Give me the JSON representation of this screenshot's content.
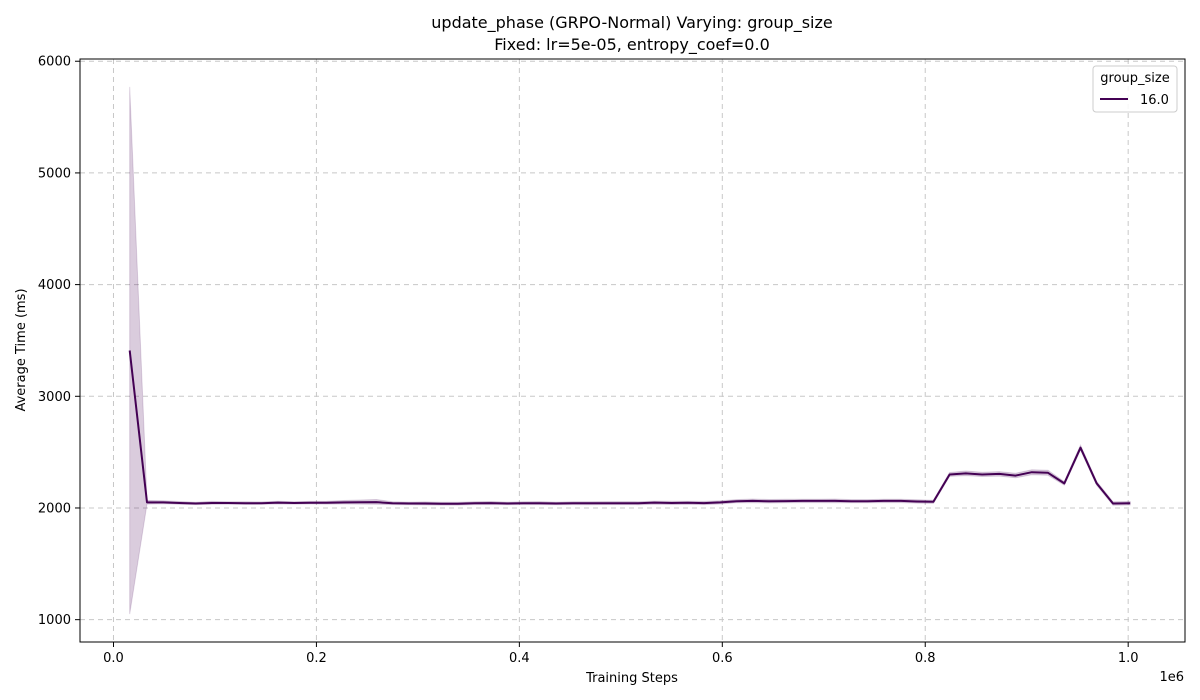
{
  "chart_data": {
    "type": "line",
    "title_line1": "update_phase (GRPO-Normal) Varying: group_size",
    "title_line2": "Fixed: lr=5e-05, entropy_coef=0.0",
    "xlabel": "Training Steps",
    "ylabel": "Average Time (ms)",
    "x_multiplier_label": "1e6",
    "xlim": [
      -0.033,
      1.056
    ],
    "ylim": [
      800,
      6020
    ],
    "xticks": [
      0.0,
      0.2,
      0.4,
      0.6,
      0.8,
      1.0
    ],
    "xtick_labels": [
      "0.0",
      "0.2",
      "0.4",
      "0.6",
      "0.8",
      "1.0"
    ],
    "yticks": [
      1000,
      2000,
      3000,
      4000,
      5000,
      6000
    ],
    "ytick_labels": [
      "1000",
      "2000",
      "3000",
      "4000",
      "5000",
      "6000"
    ],
    "grid": true,
    "legend": {
      "title": "group_size",
      "placement": "top-right"
    },
    "series": [
      {
        "name": "16.0",
        "color": "#440154",
        "band_color": "#440154",
        "x": [
          0.016,
          0.033,
          0.049,
          0.065,
          0.081,
          0.097,
          0.113,
          0.13,
          0.146,
          0.162,
          0.178,
          0.194,
          0.21,
          0.227,
          0.243,
          0.259,
          0.275,
          0.291,
          0.307,
          0.323,
          0.339,
          0.356,
          0.372,
          0.388,
          0.404,
          0.42,
          0.436,
          0.453,
          0.469,
          0.485,
          0.501,
          0.517,
          0.533,
          0.55,
          0.566,
          0.582,
          0.598,
          0.614,
          0.63,
          0.646,
          0.663,
          0.679,
          0.695,
          0.711,
          0.727,
          0.743,
          0.759,
          0.776,
          0.792,
          0.808,
          0.824,
          0.84,
          0.856,
          0.873,
          0.889,
          0.905,
          0.921,
          0.937,
          0.953,
          0.969,
          0.985,
          1.002
        ],
        "y": [
          3410,
          2050,
          2050,
          2045,
          2040,
          2045,
          2045,
          2043,
          2043,
          2048,
          2045,
          2047,
          2047,
          2050,
          2052,
          2053,
          2042,
          2040,
          2040,
          2038,
          2038,
          2042,
          2044,
          2040,
          2042,
          2043,
          2040,
          2042,
          2042,
          2043,
          2043,
          2042,
          2048,
          2045,
          2046,
          2044,
          2050,
          2060,
          2063,
          2060,
          2062,
          2063,
          2063,
          2063,
          2060,
          2060,
          2063,
          2063,
          2058,
          2055,
          2300,
          2310,
          2300,
          2305,
          2290,
          2320,
          2315,
          2220,
          2540,
          2220,
          2040,
          2042
        ],
        "y_lower": [
          1050,
          2035,
          2038,
          2033,
          2030,
          2033,
          2035,
          2032,
          2033,
          2036,
          2035,
          2036,
          2035,
          2036,
          2035,
          2033,
          2030,
          2028,
          2027,
          2026,
          2026,
          2030,
          2031,
          2028,
          2030,
          2030,
          2028,
          2030,
          2029,
          2030,
          2030,
          2029,
          2034,
          2031,
          2032,
          2030,
          2036,
          2046,
          2047,
          2045,
          2047,
          2048,
          2048,
          2047,
          2046,
          2046,
          2048,
          2048,
          2044,
          2041,
          2283,
          2290,
          2282,
          2285,
          2270,
          2298,
          2293,
          2205,
          2518,
          2203,
          2025,
          2027
        ],
        "y_upper": [
          5770,
          2068,
          2064,
          2058,
          2052,
          2059,
          2056,
          2055,
          2054,
          2061,
          2056,
          2059,
          2060,
          2067,
          2071,
          2076,
          2055,
          2053,
          2054,
          2051,
          2051,
          2055,
          2058,
          2053,
          2055,
          2057,
          2053,
          2055,
          2056,
          2057,
          2057,
          2056,
          2062,
          2060,
          2061,
          2059,
          2065,
          2075,
          2080,
          2076,
          2078,
          2079,
          2079,
          2080,
          2075,
          2075,
          2079,
          2079,
          2073,
          2070,
          2318,
          2331,
          2319,
          2326,
          2311,
          2343,
          2338,
          2236,
          2563,
          2238,
          2056,
          2058
        ]
      }
    ]
  }
}
